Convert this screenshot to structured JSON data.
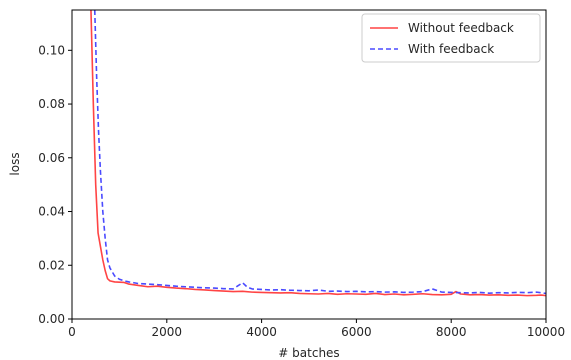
{
  "chart_data": {
    "type": "line",
    "title": "",
    "xlabel": "# batches",
    "ylabel": "loss",
    "xlim": [
      0,
      10000
    ],
    "ylim": [
      0,
      0.115
    ],
    "xticks": [
      0,
      2000,
      4000,
      6000,
      8000,
      10000
    ],
    "yticks": [
      0.0,
      0.02,
      0.04,
      0.06,
      0.08,
      0.1
    ],
    "xtick_labels": [
      "0",
      "2000",
      "4000",
      "6000",
      "8000",
      "10000"
    ],
    "ytick_labels": [
      "0.00",
      "0.02",
      "0.04",
      "0.06",
      "0.08",
      "0.10"
    ],
    "grid": false,
    "legend_position": "top-right",
    "series": [
      {
        "name": "Without feedback",
        "color": "#ff4444",
        "style": "solid",
        "points": [
          [
            400,
            0.115
          ],
          [
            450,
            0.08
          ],
          [
            500,
            0.05
          ],
          [
            550,
            0.032
          ],
          [
            600,
            0.027
          ],
          [
            650,
            0.022
          ],
          [
            700,
            0.018
          ],
          [
            750,
            0.015
          ],
          [
            800,
            0.0142
          ],
          [
            900,
            0.0138
          ],
          [
            1000,
            0.0137
          ],
          [
            1100,
            0.0136
          ],
          [
            1200,
            0.013
          ],
          [
            1400,
            0.0125
          ],
          [
            1600,
            0.012
          ],
          [
            1800,
            0.0122
          ],
          [
            2000,
            0.0118
          ],
          [
            2200,
            0.0115
          ],
          [
            2400,
            0.0113
          ],
          [
            2600,
            0.011
          ],
          [
            2800,
            0.0108
          ],
          [
            3000,
            0.0106
          ],
          [
            3200,
            0.0104
          ],
          [
            3400,
            0.0102
          ],
          [
            3600,
            0.0103
          ],
          [
            3800,
            0.01
          ],
          [
            4000,
            0.0099
          ],
          [
            4200,
            0.0098
          ],
          [
            4400,
            0.0097
          ],
          [
            4600,
            0.0098
          ],
          [
            4800,
            0.0095
          ],
          [
            5000,
            0.0094
          ],
          [
            5200,
            0.0093
          ],
          [
            5400,
            0.0095
          ],
          [
            5600,
            0.0092
          ],
          [
            5800,
            0.0094
          ],
          [
            6000,
            0.0093
          ],
          [
            6200,
            0.0092
          ],
          [
            6400,
            0.0095
          ],
          [
            6600,
            0.0091
          ],
          [
            6800,
            0.0093
          ],
          [
            7000,
            0.009
          ],
          [
            7200,
            0.0092
          ],
          [
            7400,
            0.0094
          ],
          [
            7600,
            0.0091
          ],
          [
            7800,
            0.009
          ],
          [
            8000,
            0.0092
          ],
          [
            8100,
            0.0102
          ],
          [
            8200,
            0.0093
          ],
          [
            8400,
            0.009
          ],
          [
            8600,
            0.0091
          ],
          [
            8800,
            0.0089
          ],
          [
            9000,
            0.009
          ],
          [
            9200,
            0.0088
          ],
          [
            9400,
            0.0089
          ],
          [
            9600,
            0.0087
          ],
          [
            9800,
            0.0088
          ],
          [
            9900,
            0.0089
          ],
          [
            10000,
            0.0087
          ]
        ]
      },
      {
        "name": "With feedback",
        "color": "#4a4aff",
        "style": "dashed",
        "points": [
          [
            480,
            0.115
          ],
          [
            520,
            0.09
          ],
          [
            560,
            0.07
          ],
          [
            600,
            0.055
          ],
          [
            650,
            0.04
          ],
          [
            700,
            0.03
          ],
          [
            750,
            0.022
          ],
          [
            800,
            0.019
          ],
          [
            900,
            0.016
          ],
          [
            1000,
            0.0148
          ],
          [
            1100,
            0.0142
          ],
          [
            1200,
            0.0138
          ],
          [
            1400,
            0.0132
          ],
          [
            1600,
            0.013
          ],
          [
            1800,
            0.0128
          ],
          [
            2000,
            0.0125
          ],
          [
            2200,
            0.0122
          ],
          [
            2400,
            0.012
          ],
          [
            2600,
            0.0118
          ],
          [
            2800,
            0.0116
          ],
          [
            3000,
            0.0115
          ],
          [
            3200,
            0.0113
          ],
          [
            3400,
            0.0112
          ],
          [
            3600,
            0.0135
          ],
          [
            3700,
            0.0118
          ],
          [
            3800,
            0.0112
          ],
          [
            4000,
            0.011
          ],
          [
            4200,
            0.0108
          ],
          [
            4400,
            0.0109
          ],
          [
            4600,
            0.0107
          ],
          [
            4800,
            0.0106
          ],
          [
            5000,
            0.0105
          ],
          [
            5200,
            0.0108
          ],
          [
            5400,
            0.0103
          ],
          [
            5600,
            0.0104
          ],
          [
            5800,
            0.0102
          ],
          [
            6000,
            0.0103
          ],
          [
            6200,
            0.0101
          ],
          [
            6400,
            0.0102
          ],
          [
            6600,
            0.01
          ],
          [
            6800,
            0.0101
          ],
          [
            7000,
            0.0099
          ],
          [
            7200,
            0.01
          ],
          [
            7400,
            0.0102
          ],
          [
            7600,
            0.0112
          ],
          [
            7800,
            0.01
          ],
          [
            8000,
            0.0099
          ],
          [
            8200,
            0.0098
          ],
          [
            8400,
            0.0097
          ],
          [
            8600,
            0.0099
          ],
          [
            8800,
            0.0096
          ],
          [
            9000,
            0.0098
          ],
          [
            9200,
            0.0097
          ],
          [
            9400,
            0.0099
          ],
          [
            9600,
            0.0098
          ],
          [
            9800,
            0.01
          ],
          [
            10000,
            0.0095
          ]
        ]
      }
    ]
  }
}
